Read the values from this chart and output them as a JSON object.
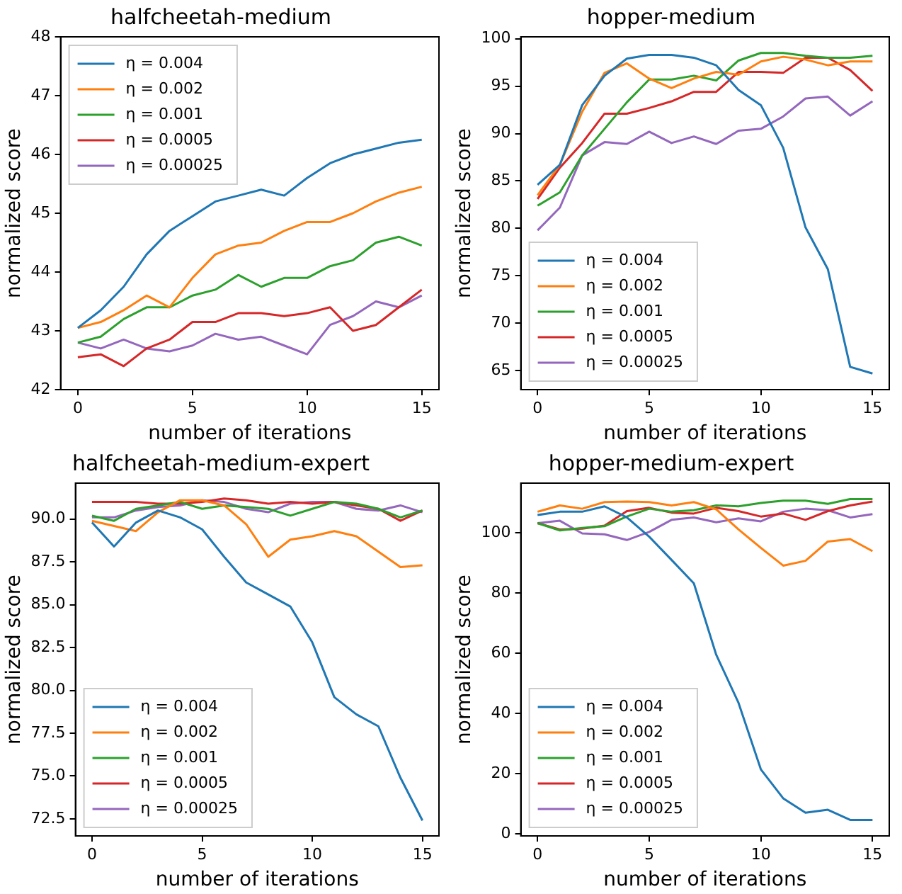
{
  "chart_data": [
    {
      "type": "line",
      "title": "halfcheetah-medium",
      "xlabel": "number of iterations",
      "ylabel": "normalized score",
      "x": [
        0,
        1,
        2,
        3,
        4,
        5,
        6,
        7,
        8,
        9,
        10,
        11,
        12,
        13,
        14,
        15
      ],
      "xlim": [
        -0.75,
        15.75
      ],
      "xticks": [
        0,
        5,
        10,
        15
      ],
      "ylim": [
        42,
        48
      ],
      "yticks": [
        42,
        43,
        44,
        45,
        46,
        47,
        48
      ],
      "grid": false,
      "legend": "top left",
      "marker": "none",
      "line_style": "solid",
      "series": [
        {
          "name": "η = 0.004",
          "color": "#1f77b4",
          "values": [
            43.05,
            43.35,
            43.75,
            44.3,
            44.7,
            44.95,
            45.2,
            45.3,
            45.4,
            45.3,
            45.6,
            45.85,
            46.0,
            46.1,
            46.2,
            46.25
          ]
        },
        {
          "name": "η = 0.002",
          "color": "#ff7f0e",
          "values": [
            43.05,
            43.15,
            43.35,
            43.6,
            43.4,
            43.9,
            44.3,
            44.45,
            44.5,
            44.7,
            44.85,
            44.85,
            45.0,
            45.2,
            45.35,
            45.45
          ]
        },
        {
          "name": "η = 0.001",
          "color": "#2ca02c",
          "values": [
            42.8,
            42.9,
            43.2,
            43.4,
            43.4,
            43.6,
            43.7,
            43.95,
            43.75,
            43.9,
            43.9,
            44.1,
            44.2,
            44.5,
            44.6,
            44.45
          ]
        },
        {
          "name": "η = 0.0005",
          "color": "#d62728",
          "values": [
            42.55,
            42.6,
            42.4,
            42.7,
            42.85,
            43.15,
            43.15,
            43.3,
            43.3,
            43.25,
            43.3,
            43.4,
            43.0,
            43.1,
            43.4,
            43.7
          ]
        },
        {
          "name": "η = 0.00025",
          "color": "#9467bd",
          "values": [
            42.8,
            42.7,
            42.85,
            42.7,
            42.65,
            42.75,
            42.95,
            42.85,
            42.9,
            42.75,
            42.6,
            43.1,
            43.25,
            43.5,
            43.4,
            43.6
          ]
        }
      ]
    },
    {
      "type": "line",
      "title": "hopper-medium",
      "xlabel": "number of iterations",
      "ylabel": "normalized score",
      "x": [
        0,
        1,
        2,
        3,
        4,
        5,
        6,
        7,
        8,
        9,
        10,
        11,
        12,
        13,
        14,
        15
      ],
      "xlim": [
        -0.75,
        15.75
      ],
      "xticks": [
        0,
        5,
        10,
        15
      ],
      "ylim": [
        63,
        100.2
      ],
      "yticks": [
        65,
        70,
        75,
        80,
        85,
        90,
        95,
        100
      ],
      "grid": false,
      "legend": "bottom left",
      "marker": "none",
      "line_style": "solid",
      "series": [
        {
          "name": "η = 0.004",
          "color": "#1f77b4",
          "values": [
            84.6,
            86.7,
            93.0,
            96.1,
            97.9,
            98.3,
            98.3,
            98.0,
            97.2,
            94.6,
            93.0,
            88.5,
            80.1,
            75.7,
            65.4,
            64.7
          ]
        },
        {
          "name": "η = 0.002",
          "color": "#ff7f0e",
          "values": [
            83.5,
            86.7,
            92.3,
            96.4,
            97.4,
            95.8,
            94.8,
            95.8,
            96.5,
            96.2,
            97.6,
            98.1,
            97.8,
            97.2,
            97.6,
            97.6
          ]
        },
        {
          "name": "η = 0.001",
          "color": "#2ca02c",
          "values": [
            82.4,
            83.8,
            87.7,
            90.5,
            93.3,
            95.7,
            95.7,
            96.1,
            95.6,
            97.7,
            98.5,
            98.5,
            98.2,
            98.0,
            98.0,
            98.2
          ]
        },
        {
          "name": "η = 0.0005",
          "color": "#d62728",
          "values": [
            83.1,
            86.4,
            89.0,
            92.1,
            92.1,
            92.7,
            93.4,
            94.4,
            94.4,
            96.5,
            96.5,
            96.4,
            98.0,
            98.0,
            96.7,
            94.5
          ]
        },
        {
          "name": "η = 0.00025",
          "color": "#9467bd",
          "values": [
            79.8,
            82.2,
            87.7,
            89.1,
            88.9,
            90.2,
            89.0,
            89.7,
            88.9,
            90.3,
            90.5,
            91.8,
            93.7,
            93.9,
            91.9,
            93.4
          ]
        }
      ]
    },
    {
      "type": "line",
      "title": "halfcheetah-medium-expert",
      "xlabel": "number of iterations",
      "ylabel": "normalized score",
      "x": [
        0,
        1,
        2,
        3,
        4,
        5,
        6,
        7,
        8,
        9,
        10,
        11,
        12,
        13,
        14,
        15
      ],
      "xlim": [
        -0.75,
        15.75
      ],
      "xticks": [
        0,
        5,
        10,
        15
      ],
      "ylim": [
        71.5,
        92.1
      ],
      "yticks": [
        {
          "value": 72.5,
          "label": "72.5"
        },
        {
          "value": 75,
          "label": "75.0"
        },
        {
          "value": 77.5,
          "label": "77.5"
        },
        {
          "value": 80,
          "label": "80.0"
        },
        {
          "value": 82.5,
          "label": "82.5"
        },
        {
          "value": 85,
          "label": "85.0"
        },
        {
          "value": 87.5,
          "label": "87.5"
        },
        {
          "value": 90,
          "label": "90.0"
        }
      ],
      "grid": false,
      "legend": "bottom left",
      "marker": "none",
      "line_style": "solid",
      "series": [
        {
          "name": "η = 0.004",
          "color": "#1f77b4",
          "values": [
            89.8,
            88.4,
            89.8,
            90.5,
            90.1,
            89.4,
            87.8,
            86.3,
            85.6,
            84.9,
            82.8,
            79.6,
            78.6,
            77.9,
            74.9,
            72.4
          ]
        },
        {
          "name": "η = 0.002",
          "color": "#ff7f0e",
          "values": [
            89.9,
            89.6,
            89.3,
            90.4,
            91.1,
            91.1,
            90.8,
            89.7,
            87.8,
            88.8,
            89.0,
            89.3,
            89.0,
            88.1,
            87.2,
            87.3
          ]
        },
        {
          "name": "η = 0.001",
          "color": "#2ca02c",
          "values": [
            90.2,
            89.9,
            90.6,
            90.8,
            91.0,
            90.6,
            90.8,
            90.7,
            90.6,
            90.2,
            90.6,
            91.0,
            90.9,
            90.6,
            90.1,
            90.5
          ]
        },
        {
          "name": "η = 0.0005",
          "color": "#d62728",
          "values": [
            91.0,
            91.0,
            91.0,
            90.9,
            90.9,
            91.0,
            91.2,
            91.1,
            90.9,
            91.0,
            90.9,
            91.0,
            90.8,
            90.6,
            89.9,
            90.5
          ]
        },
        {
          "name": "η = 0.00025",
          "color": "#9467bd",
          "values": [
            90.1,
            90.1,
            90.5,
            90.7,
            90.8,
            91.1,
            91.0,
            90.6,
            90.4,
            90.9,
            91.0,
            91.0,
            90.6,
            90.5,
            90.8,
            90.4
          ]
        }
      ]
    },
    {
      "type": "line",
      "title": "hopper-medium-expert",
      "xlabel": "number of iterations",
      "ylabel": "normalized score",
      "x": [
        0,
        1,
        2,
        3,
        4,
        5,
        6,
        7,
        8,
        9,
        10,
        11,
        12,
        13,
        14,
        15
      ],
      "xlim": [
        -0.75,
        15.75
      ],
      "xticks": [
        0,
        5,
        10,
        15
      ],
      "ylim": [
        -0.7,
        116.5
      ],
      "yticks": [
        0,
        20,
        40,
        60,
        80,
        100
      ],
      "grid": false,
      "legend": "bottom left",
      "marker": "none",
      "line_style": "solid",
      "series": [
        {
          "name": "η = 0.004",
          "color": "#1f77b4",
          "values": [
            105.9,
            107.0,
            107.0,
            108.8,
            105.1,
            98.7,
            91.0,
            83.2,
            59.5,
            43.5,
            21.4,
            11.8,
            7.0,
            8.0,
            4.6,
            4.6
          ]
        },
        {
          "name": "η = 0.002",
          "color": "#ff7f0e",
          "values": [
            107.0,
            109.1,
            108.0,
            110.2,
            110.4,
            110.2,
            109.1,
            110.2,
            107.8,
            101.1,
            95.0,
            89.1,
            90.7,
            97.1,
            97.9,
            93.9
          ]
        },
        {
          "name": "η = 0.001",
          "color": "#2ca02c",
          "values": [
            103.2,
            100.8,
            101.6,
            102.2,
            105.4,
            108.0,
            107.0,
            107.5,
            109.1,
            108.8,
            109.9,
            110.7,
            110.7,
            109.6,
            111.2,
            111.2
          ]
        },
        {
          "name": "η = 0.0005",
          "color": "#d62728",
          "values": [
            103.2,
            101.1,
            101.4,
            102.4,
            107.2,
            108.3,
            106.7,
            106.4,
            108.3,
            107.2,
            105.4,
            106.4,
            104.3,
            107.2,
            109.1,
            110.4
          ]
        },
        {
          "name": "η = 0.00025",
          "color": "#9467bd",
          "values": [
            103.2,
            104.0,
            99.8,
            99.5,
            97.6,
            100.3,
            104.3,
            105.1,
            103.5,
            104.8,
            103.8,
            107.0,
            108.0,
            107.5,
            105.1,
            106.2
          ]
        }
      ]
    }
  ]
}
